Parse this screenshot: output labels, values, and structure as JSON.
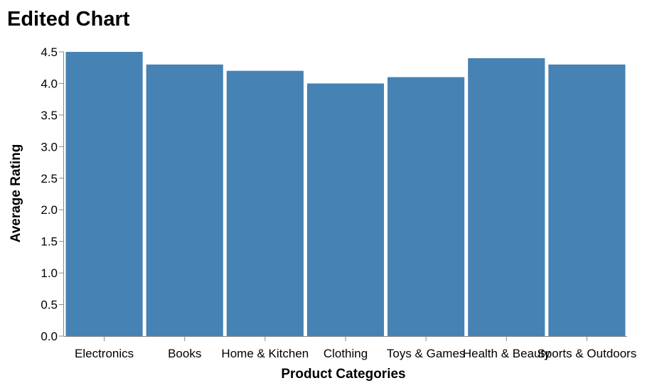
{
  "chart_data": {
    "type": "bar",
    "title": "Edited Chart",
    "xlabel": "Product Categories",
    "ylabel": "Average Rating",
    "categories": [
      "Electronics",
      "Books",
      "Home & Kitchen",
      "Clothing",
      "Toys & Games",
      "Health & Beauty",
      "Sports & Outdoors"
    ],
    "values": [
      4.5,
      4.3,
      4.2,
      4.0,
      4.1,
      4.4,
      4.3
    ],
    "ylim": [
      0,
      4.5
    ],
    "yticks": [
      "0.0",
      "0.5",
      "1.0",
      "1.5",
      "2.0",
      "2.5",
      "3.0",
      "3.5",
      "4.0",
      "4.5"
    ],
    "grid": false,
    "bar_color": "#4682b4"
  }
}
